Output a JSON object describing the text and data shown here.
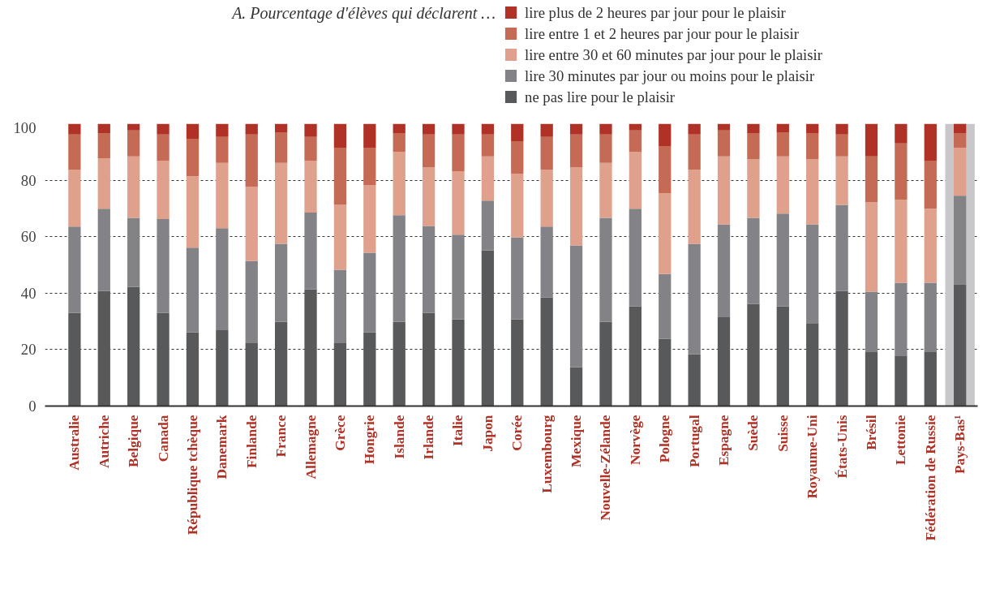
{
  "chart_data": {
    "type": "bar",
    "stacked": true,
    "title": "A. Pourcentage d'élèves qui déclarent …",
    "categories": [
      "Australie",
      "Autriche",
      "Belgique",
      "Canada",
      "République tchèque",
      "Danemark",
      "Finlande",
      "France",
      "Allemagne",
      "Grèce",
      "Hongrie",
      "Islande",
      "Irlande",
      "Italie",
      "Japon",
      "Corée",
      "Luxembourg",
      "Mexique",
      "Nouvelle-Zélande",
      "Norvège",
      "Pologne",
      "Portugal",
      "Espagne",
      "Suède",
      "Suisse",
      "Royaume-Uni",
      "États-Unis",
      "Brésil",
      "Lettonie",
      "Fédération de Russie",
      "Pays-Bas¹"
    ],
    "series": [
      {
        "name": "ne pas lire pour le plaisir",
        "color": "#58595b",
        "values": [
          33.0,
          40.8,
          42.2,
          33.0,
          26.1,
          26.9,
          22.3,
          29.8,
          41.3,
          22.3,
          26.1,
          29.8,
          33.0,
          30.7,
          55.2,
          30.7,
          38.5,
          13.7,
          29.8,
          35.3,
          23.8,
          18.3,
          31.5,
          36.2,
          35.3,
          29.2,
          40.8,
          19.1,
          17.7,
          19.1,
          43.1
        ]
      },
      {
        "name": "lire 30 minutes par jour ou moins pour le plaisir",
        "color": "#838387",
        "values": [
          30.6,
          29.1,
          24.5,
          33.2,
          30.0,
          36.1,
          29.1,
          27.7,
          27.2,
          26.0,
          28.2,
          37.8,
          30.8,
          30.0,
          17.6,
          29.1,
          25.1,
          43.2,
          36.9,
          34.6,
          23.0,
          39.2,
          32.9,
          30.5,
          32.9,
          35.2,
          30.5,
          21.4,
          26.0,
          24.6,
          31.4
        ]
      },
      {
        "name": "lire entre 30 et 60 minutes par jour pour le plaisir",
        "color": "#dfa08c",
        "values": [
          20.2,
          17.9,
          21.7,
          20.7,
          25.3,
          23.1,
          26.3,
          28.6,
          18.4,
          23.0,
          24.0,
          22.5,
          20.8,
          22.5,
          15.6,
          22.5,
          20.2,
          27.7,
          19.4,
          20.2,
          28.6,
          26.3,
          24.0,
          20.8,
          20.2,
          23.1,
          17.1,
          31.7,
          29.4,
          26.2,
          17.0
        ]
      },
      {
        "name": "lire entre 1 et 2 heures par jour pour le plaisir",
        "color": "#c56a55",
        "values": [
          12.4,
          8.9,
          9.2,
          9.3,
          13.3,
          9.2,
          18.5,
          10.9,
          8.4,
          20.2,
          13.2,
          6.6,
          11.6,
          13.0,
          7.8,
          11.5,
          11.5,
          11.6,
          10.1,
          7.5,
          16.7,
          12.4,
          9.2,
          9.2,
          8.6,
          9.2,
          7.8,
          16.2,
          19.9,
          17.0,
          5.2
        ]
      },
      {
        "name": "lire plus de 2 heures par jour pour le plaisir",
        "color": "#b03226",
        "values": [
          3.8,
          3.3,
          2.4,
          3.8,
          5.3,
          4.7,
          3.8,
          3.0,
          4.7,
          8.5,
          8.5,
          3.3,
          3.8,
          3.8,
          3.8,
          6.2,
          4.7,
          3.8,
          3.8,
          2.4,
          7.9,
          3.8,
          2.4,
          3.3,
          3.0,
          3.3,
          3.8,
          11.6,
          7.0,
          13.1,
          3.3
        ]
      }
    ],
    "ylim": [
      0,
      100
    ],
    "yticks": [
      0,
      20,
      40,
      60,
      80,
      100
    ],
    "grid": "y",
    "legend": "top right",
    "bands": [
      {
        "axis": "x",
        "from": "Pays-Bas¹",
        "to": "Pays-Bas¹",
        "color": "#c8c8ca"
      }
    ]
  }
}
